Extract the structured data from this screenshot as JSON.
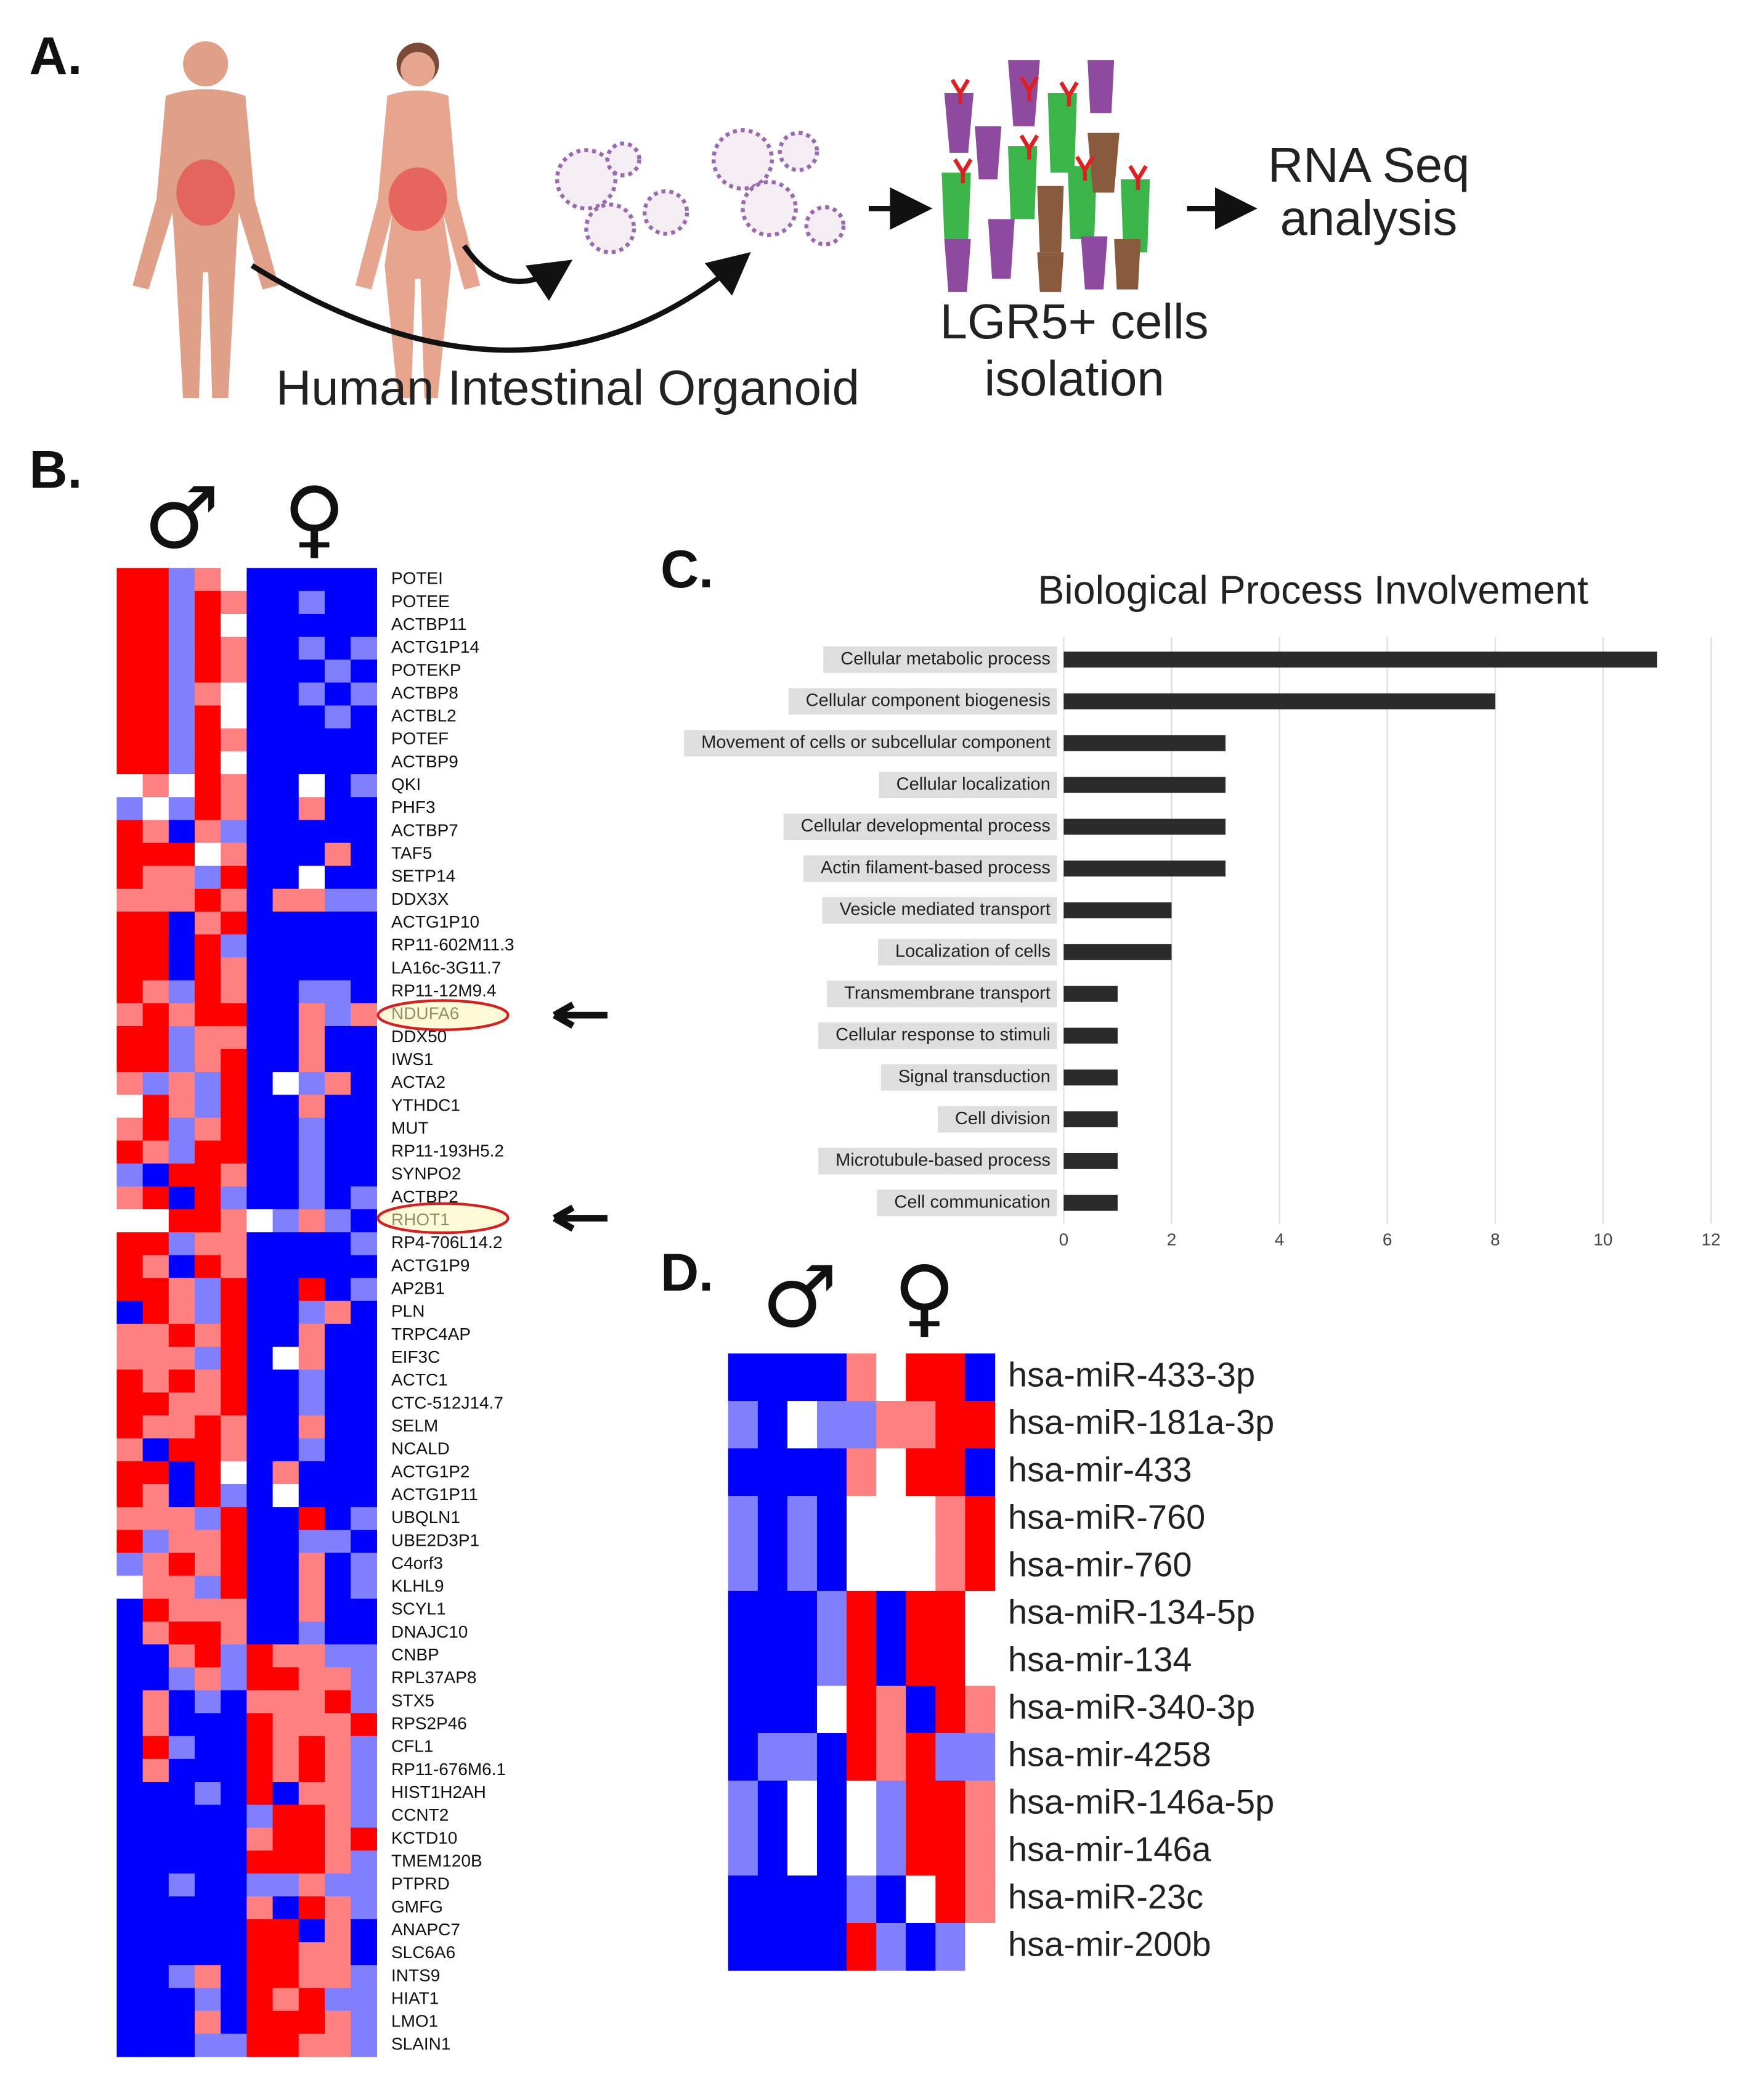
{
  "panel_a": {
    "label": "A.",
    "organoid_label": "Human Intestinal Organoid",
    "isolation_label": [
      "LGR5+ cells",
      "isolation"
    ],
    "analysis_label": [
      "RNA Seq",
      "analysis"
    ]
  },
  "panel_b": {
    "label": "B.",
    "male_symbol": "♂",
    "female_symbol": "♀",
    "color_low": "#0000ff",
    "color_mid": "#ffffff",
    "color_high": "#ff0000",
    "range": [
      -2,
      2
    ],
    "genes": [
      "POTEI",
      "POTEE",
      "ACTBP11",
      "ACTG1P14",
      "POTEKP",
      "ACTBP8",
      "ACTBL2",
      "POTEF",
      "ACTBP9",
      "QKI",
      "PHF3",
      "ACTBP7",
      "TAF5",
      "SETP14",
      "DDX3X",
      "ACTG1P10",
      "RP11-602M11.3",
      "LA16c-3G11.7",
      "RP11-12M9.4",
      "NDUFA6",
      "DDX50",
      "IWS1",
      "ACTA2",
      "YTHDC1",
      "MUT",
      "RP11-193H5.2",
      "SYNPO2",
      "ACTBP2",
      "RHOT1",
      "RP4-706L14.2",
      "ACTG1P9",
      "AP2B1",
      "PLN",
      "TRPC4AP",
      "EIF3C",
      "ACTC1",
      "CTC-512J14.7",
      "SELM",
      "NCALD",
      "ACTG1P2",
      "ACTG1P11",
      "UBQLN1",
      "UBE2D3P1",
      "C4orf3",
      "KLHL9",
      "SCYL1",
      "DNAJC10",
      "CNBP",
      "RPL37AP8",
      "STX5",
      "RPS2P46",
      "CFL1",
      "RP11-676M6.1",
      "HIST1H2AH",
      "CCNT2",
      "KCTD10",
      "TMEM120B",
      "PTPRD",
      "GMFG",
      "ANAPC7",
      "SLC6A6",
      "INTS9",
      "HIAT1",
      "LMO1",
      "SLAIN1"
    ],
    "values": [
      [
        2,
        2,
        -1,
        1,
        0,
        -2,
        -2,
        -2,
        -2,
        -2
      ],
      [
        2,
        2,
        -1,
        2,
        1,
        -2,
        -2,
        -1,
        -2,
        -2
      ],
      [
        2,
        2,
        -1,
        2,
        0,
        -2,
        -2,
        -2,
        -2,
        -2
      ],
      [
        2,
        2,
        -1,
        2,
        1,
        -2,
        -2,
        -1,
        -2,
        -1
      ],
      [
        2,
        2,
        -1,
        2,
        1,
        -2,
        -2,
        -2,
        -1,
        -2
      ],
      [
        2,
        2,
        -1,
        1,
        0,
        -2,
        -2,
        -1,
        -2,
        -1
      ],
      [
        2,
        2,
        -1,
        2,
        0,
        -2,
        -2,
        -2,
        -1,
        -2
      ],
      [
        2,
        2,
        -1,
        2,
        1,
        -2,
        -2,
        -2,
        -2,
        -2
      ],
      [
        2,
        2,
        -1,
        2,
        0,
        -2,
        -2,
        -2,
        -2,
        -2
      ],
      [
        0,
        1,
        0,
        2,
        1,
        -2,
        -2,
        0,
        -2,
        -1
      ],
      [
        -1,
        0,
        -1,
        2,
        1,
        -2,
        -2,
        1,
        -2,
        -2
      ],
      [
        2,
        1,
        -2,
        1,
        -1,
        -2,
        -2,
        -2,
        -2,
        -2
      ],
      [
        2,
        2,
        2,
        0,
        1,
        -2,
        -2,
        -2,
        1,
        -2
      ],
      [
        2,
        1,
        1,
        -1,
        2,
        -2,
        -2,
        0,
        -2,
        -2
      ],
      [
        1,
        1,
        1,
        2,
        1,
        -2,
        1,
        1,
        -1,
        -1
      ],
      [
        2,
        2,
        -2,
        1,
        2,
        -2,
        -2,
        -2,
        -2,
        -2
      ],
      [
        2,
        2,
        -2,
        2,
        -1,
        -2,
        -2,
        -2,
        -2,
        -2
      ],
      [
        2,
        2,
        -2,
        2,
        1,
        -2,
        -2,
        -2,
        -2,
        -2
      ],
      [
        2,
        1,
        -1,
        2,
        1,
        -2,
        -2,
        -1,
        -1,
        -2
      ],
      [
        1,
        2,
        1,
        2,
        2,
        -2,
        -2,
        1,
        -1,
        1
      ],
      [
        2,
        2,
        -1,
        1,
        1,
        -2,
        -2,
        1,
        -2,
        -2
      ],
      [
        2,
        2,
        -1,
        1,
        2,
        -2,
        -2,
        1,
        -2,
        -2
      ],
      [
        1,
        -1,
        1,
        -1,
        2,
        -2,
        0,
        -1,
        1,
        -2
      ],
      [
        0,
        2,
        1,
        -1,
        2,
        -2,
        -2,
        1,
        -2,
        -2
      ],
      [
        1,
        2,
        -1,
        1,
        2,
        -2,
        -2,
        -1,
        -2,
        -2
      ],
      [
        2,
        1,
        -1,
        2,
        2,
        -2,
        -2,
        -1,
        -2,
        -2
      ],
      [
        -1,
        -2,
        2,
        2,
        1,
        -2,
        -2,
        -1,
        -2,
        -2
      ],
      [
        1,
        2,
        -2,
        2,
        -1,
        -2,
        -2,
        -1,
        -2,
        -1
      ],
      [
        0,
        0,
        2,
        2,
        1,
        0,
        -1,
        1,
        -1,
        -2
      ],
      [
        2,
        2,
        -1,
        1,
        1,
        -2,
        -2,
        -2,
        -2,
        -1
      ],
      [
        2,
        1,
        -2,
        2,
        1,
        -2,
        -2,
        -2,
        -2,
        -2
      ],
      [
        2,
        2,
        1,
        -1,
        2,
        -2,
        -2,
        2,
        -2,
        -1
      ],
      [
        -2,
        2,
        1,
        -1,
        2,
        -2,
        -2,
        -1,
        1,
        -2
      ],
      [
        1,
        1,
        2,
        1,
        2,
        -2,
        -2,
        1,
        -2,
        -2
      ],
      [
        1,
        1,
        1,
        -1,
        2,
        -2,
        0,
        1,
        -2,
        -2
      ],
      [
        2,
        1,
        2,
        1,
        2,
        -2,
        -2,
        -1,
        -2,
        -2
      ],
      [
        2,
        2,
        1,
        1,
        2,
        -2,
        -2,
        -1,
        -2,
        -2
      ],
      [
        2,
        1,
        1,
        2,
        1,
        -2,
        -2,
        1,
        -2,
        -2
      ],
      [
        1,
        -2,
        2,
        2,
        1,
        -2,
        -2,
        -1,
        -2,
        -2
      ],
      [
        2,
        2,
        -2,
        2,
        0,
        -2,
        1,
        -2,
        -2,
        -2
      ],
      [
        2,
        1,
        -2,
        2,
        -1,
        -2,
        0,
        -2,
        -2,
        -2
      ],
      [
        1,
        1,
        1,
        -1,
        2,
        -2,
        -2,
        2,
        -2,
        -1
      ],
      [
        2,
        -1,
        1,
        1,
        2,
        -2,
        -2,
        -1,
        -1,
        -2
      ],
      [
        -1,
        1,
        2,
        1,
        2,
        -2,
        -2,
        1,
        -2,
        -1
      ],
      [
        0,
        1,
        1,
        -1,
        2,
        -2,
        -2,
        1,
        -2,
        -1
      ],
      [
        -2,
        2,
        1,
        1,
        1,
        -2,
        -2,
        1,
        -2,
        -2
      ],
      [
        -2,
        1,
        2,
        2,
        1,
        -2,
        -2,
        -1,
        -2,
        -2
      ],
      [
        -2,
        -2,
        1,
        2,
        -1,
        2,
        1,
        1,
        -1,
        -1
      ],
      [
        -2,
        -2,
        -1,
        1,
        -1,
        2,
        2,
        1,
        1,
        -1
      ],
      [
        -2,
        1,
        -2,
        -1,
        -2,
        1,
        1,
        1,
        2,
        -1
      ],
      [
        -2,
        1,
        -2,
        -2,
        -2,
        2,
        1,
        1,
        1,
        2
      ],
      [
        -2,
        2,
        -1,
        -2,
        -2,
        2,
        1,
        2,
        1,
        -1
      ],
      [
        -2,
        1,
        -2,
        -2,
        -2,
        2,
        1,
        2,
        1,
        -1
      ],
      [
        -2,
        -2,
        -2,
        -1,
        -2,
        2,
        -2,
        1,
        1,
        -1
      ],
      [
        -2,
        -2,
        -2,
        -2,
        -2,
        -1,
        2,
        2,
        1,
        -1
      ],
      [
        -2,
        -2,
        -2,
        -2,
        -2,
        1,
        2,
        2,
        1,
        2
      ],
      [
        -2,
        -2,
        -2,
        -2,
        -2,
        2,
        2,
        2,
        1,
        -1
      ],
      [
        -2,
        -2,
        -1,
        -2,
        -2,
        -1,
        -1,
        1,
        -1,
        -1
      ],
      [
        -2,
        -2,
        -2,
        -2,
        -2,
        1,
        -2,
        2,
        1,
        -1
      ],
      [
        -2,
        -2,
        -2,
        -2,
        -2,
        2,
        2,
        -2,
        1,
        -2
      ],
      [
        -2,
        -2,
        -2,
        -2,
        -2,
        2,
        2,
        1,
        1,
        -2
      ],
      [
        -2,
        -2,
        -1,
        1,
        -2,
        2,
        2,
        1,
        1,
        -1
      ],
      [
        -2,
        -2,
        -2,
        -1,
        -2,
        2,
        1,
        2,
        -1,
        -1
      ],
      [
        -2,
        -2,
        -2,
        1,
        -2,
        2,
        2,
        2,
        1,
        -1
      ],
      [
        -2,
        -2,
        -2,
        -1,
        -1,
        2,
        2,
        1,
        1,
        -1
      ]
    ]
  },
  "chart_data": {
    "type": "hbar",
    "panel_label": "C.",
    "title": "Biological Process Involvement",
    "categories": [
      "Cellular metabolic process",
      "Cellular component biogenesis",
      "Movement of cells or subcellular component",
      "Cellular localization",
      "Cellular developmental process",
      "Actin filament-based process",
      "Vesicle mediated transport",
      "Localization of cells",
      "Transmembrane transport",
      "Cellular response to stimuli",
      "Signal transduction",
      "Cell division",
      "Microtubule-based process",
      "Cell communication"
    ],
    "values": [
      11,
      8,
      3,
      3,
      3,
      3,
      2,
      2,
      1,
      1,
      1,
      1,
      1,
      1
    ],
    "color": "#2b2b2b",
    "xlim": [
      0,
      12
    ],
    "xticks": [
      0,
      2,
      4,
      6,
      8,
      10,
      12
    ],
    "grid": true
  },
  "panel_d": {
    "label": "D.",
    "male_symbol": "♂",
    "female_symbol": "♀",
    "mirnas": [
      "hsa-miR-433-3p",
      "hsa-miR-181a-3p",
      "hsa-mir-433",
      "hsa-miR-760",
      "hsa-mir-760",
      "hsa-miR-134-5p",
      "hsa-mir-134",
      "hsa-miR-340-3p",
      "hsa-mir-4258",
      "hsa-miR-146a-5p",
      "hsa-mir-146a",
      "hsa-miR-23c",
      "hsa-mir-200b"
    ],
    "values": [
      [
        -2,
        -2,
        -2,
        -2,
        1,
        0,
        2,
        2,
        -2
      ],
      [
        -1,
        -2,
        0,
        -1,
        -1,
        1,
        1,
        2,
        2
      ],
      [
        -2,
        -2,
        -2,
        -2,
        1,
        0,
        2,
        2,
        -2
      ],
      [
        -1,
        -2,
        -1,
        -2,
        0,
        0,
        0,
        1,
        2
      ],
      [
        -1,
        -2,
        -1,
        -2,
        0,
        0,
        0,
        1,
        2
      ],
      [
        -2,
        -2,
        -2,
        -1,
        2,
        -2,
        2,
        2,
        0
      ],
      [
        -2,
        -2,
        -2,
        -1,
        2,
        -2,
        2,
        2,
        0
      ],
      [
        -2,
        -2,
        -2,
        0,
        2,
        1,
        -2,
        2,
        1
      ],
      [
        -2,
        -1,
        -1,
        -2,
        2,
        1,
        2,
        -1,
        -1
      ],
      [
        -1,
        -2,
        0,
        -2,
        0,
        -1,
        2,
        2,
        1
      ],
      [
        -1,
        -2,
        0,
        -2,
        0,
        -1,
        2,
        2,
        1
      ],
      [
        -2,
        -2,
        -2,
        -2,
        -1,
        -2,
        0,
        2,
        1
      ],
      [
        -2,
        -2,
        -2,
        -2,
        2,
        -1,
        -2,
        -1,
        0
      ]
    ]
  }
}
